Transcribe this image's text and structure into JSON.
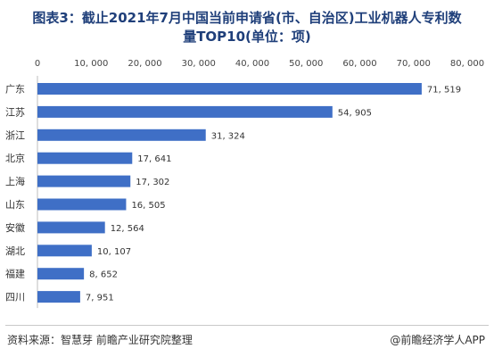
{
  "chart_data": {
    "type": "bar",
    "orientation": "horizontal",
    "title_line1": "图表3：截止2021年7月中国当前申请省(市、自治区)工业机器人专利数",
    "title_line2": "量TOP10(单位：项)",
    "categories": [
      "广东",
      "江苏",
      "浙江",
      "北京",
      "上海",
      "山东",
      "安徽",
      "湖北",
      "福建",
      "四川"
    ],
    "values": [
      71519,
      54905,
      31324,
      17641,
      17302,
      16505,
      12564,
      10107,
      8652,
      7951
    ],
    "value_labels": [
      "71, 519",
      "54, 905",
      "31, 324",
      "17, 641",
      "17, 302",
      "16, 505",
      "12, 564",
      "10, 107",
      "8, 652",
      "7, 951"
    ],
    "xlim": [
      0,
      80000
    ],
    "x_ticks": [
      0,
      10000,
      20000,
      30000,
      40000,
      50000,
      60000,
      70000,
      80000
    ],
    "x_tick_labels": [
      "0",
      "10, 000",
      "20, 000",
      "30, 000",
      "40, 000",
      "50, 000",
      "60, 000",
      "70, 000",
      "80, 000"
    ],
    "axis_position": "top",
    "grid": false,
    "legend": "none",
    "bar_color": "#3f6fc6"
  },
  "footer": {
    "source": "资料来源：智慧芽 前瞻产业研究院整理",
    "brand": "@前瞻经济学人APP"
  }
}
